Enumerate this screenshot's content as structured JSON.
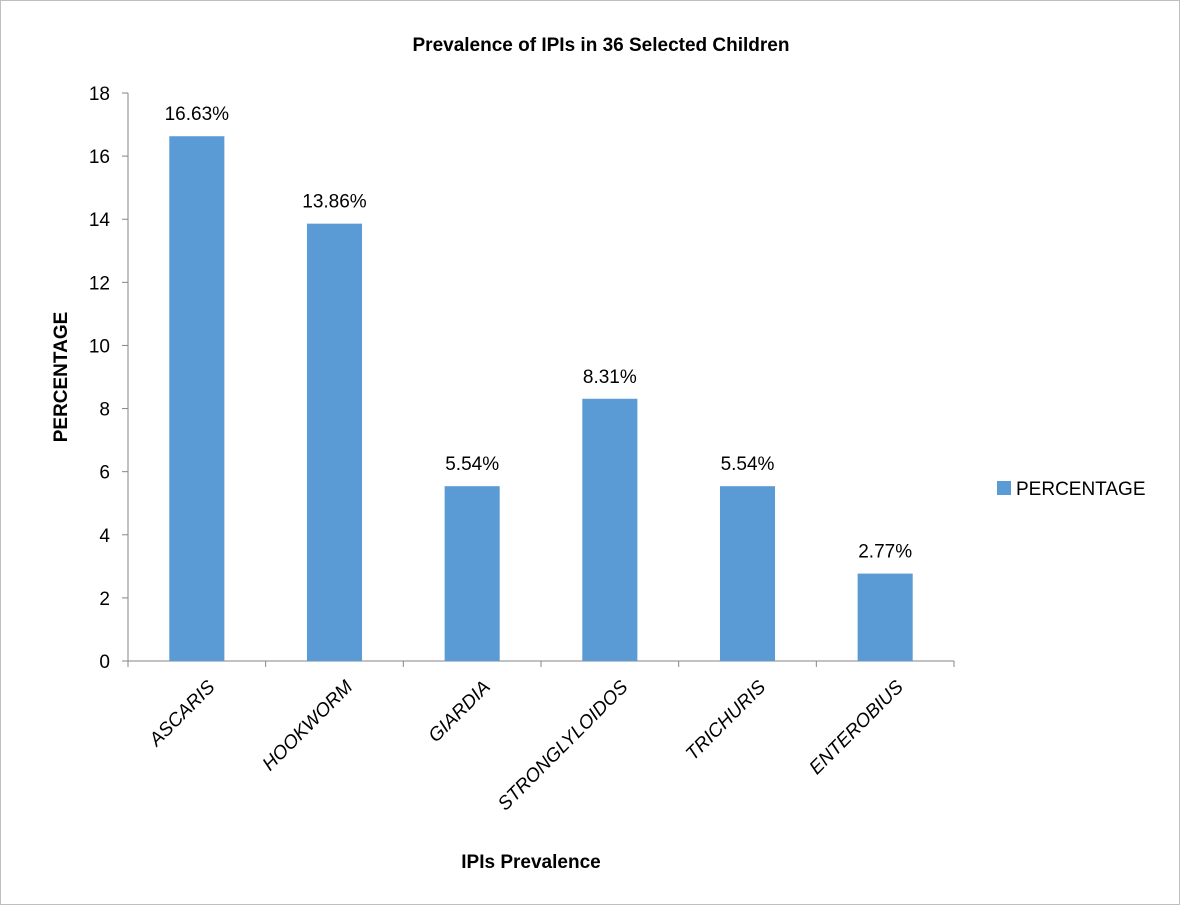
{
  "chart_data": {
    "type": "bar",
    "title": "Prevalence of IPIs in 36 Selected Children",
    "xlabel": "IPIs Prevalence",
    "ylabel": "PERCENTAGE",
    "categories": [
      "ASCARIS",
      "HOOKWORM",
      "GIARDIA",
      "STRONGLYLOIDOS",
      "TRICHURIS",
      "ENTEROBIUS"
    ],
    "series": [
      {
        "name": "PERCENTAGE",
        "values": [
          16.63,
          13.86,
          5.54,
          8.31,
          5.54,
          2.77
        ],
        "data_labels": [
          "16.63%",
          "13.86%",
          "5.54%",
          "8.31%",
          "5.54%",
          "2.77%"
        ],
        "color": "#5b9bd5"
      }
    ],
    "ylim": [
      0,
      18
    ],
    "yticks": [
      0,
      2,
      4,
      6,
      8,
      10,
      12,
      14,
      16,
      18
    ],
    "grid": false,
    "legend": "right"
  }
}
